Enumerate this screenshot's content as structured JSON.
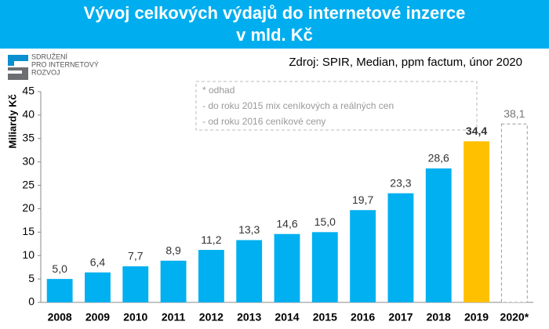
{
  "logo": [
    "SDRUŽENÍ",
    "PRO INTERNETOVÝ",
    "ROZVOJ"
  ],
  "chart_data": {
    "type": "bar",
    "title": [
      "Vývoj celkových výdajů do internetové inzerce",
      "v mld. Kč"
    ],
    "source": "Zdroj: SPIR, Median, ppm factum, únor 2020",
    "notes": [
      "* odhad",
      "- do roku 2015 mix ceníkových a reálných cen",
      "- od roku 2016 ceníkové ceny"
    ],
    "y_label": "Miliardy Kč",
    "categories": [
      "2008",
      "2009",
      "2010",
      "2011",
      "2012",
      "2013",
      "2014",
      "2015",
      "2016",
      "2017",
      "2018",
      "2019",
      "2020*"
    ],
    "values": [
      5.0,
      6.4,
      7.7,
      8.9,
      11.2,
      13.3,
      14.6,
      15.0,
      19.7,
      23.3,
      28.6,
      34.4,
      38.1
    ],
    "value_labels": [
      "5,0",
      "6,4",
      "7,7",
      "8,9",
      "11,2",
      "13,3",
      "14,6",
      "15,0",
      "19,7",
      "23,3",
      "28,6",
      "34,4",
      "38,1"
    ],
    "colors": [
      "#00b0f0",
      "#00b0f0",
      "#00b0f0",
      "#00b0f0",
      "#00b0f0",
      "#00b0f0",
      "#00b0f0",
      "#00b0f0",
      "#00b0f0",
      "#00b0f0",
      "#00b0f0",
      "#ffc000",
      "#ffffff"
    ],
    "dashed": [
      false,
      false,
      false,
      false,
      false,
      false,
      false,
      false,
      false,
      false,
      false,
      false,
      true
    ],
    "ylim": [
      0,
      45
    ],
    "yticks": [
      0,
      5,
      10,
      15,
      20,
      25,
      30,
      35,
      40,
      45
    ],
    "grid": false
  }
}
